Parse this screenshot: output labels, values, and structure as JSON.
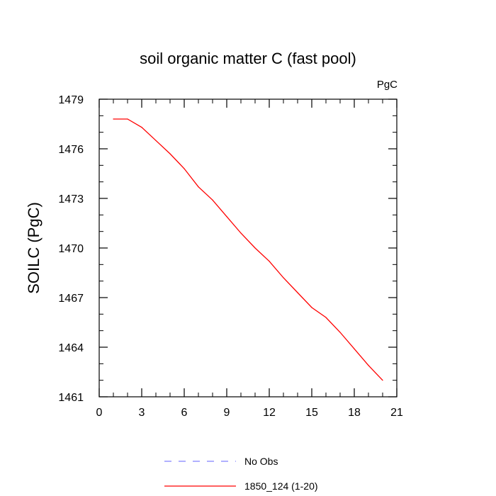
{
  "chart_data": {
    "type": "line",
    "title": "soil organic matter C (fast pool)",
    "units_label": "PgC",
    "xlabel": "",
    "ylabel": "SOILC  (PgC)",
    "xlim": [
      0,
      21
    ],
    "ylim": [
      1461,
      1479
    ],
    "xticks": [
      0,
      3,
      6,
      9,
      12,
      15,
      18,
      21
    ],
    "yticks": [
      1461,
      1464,
      1467,
      1470,
      1473,
      1476,
      1479
    ],
    "grid": false,
    "legend_position": "bottom",
    "series": [
      {
        "name": "No Obs",
        "color": "#8080ff",
        "dash": true,
        "x": [],
        "y": []
      },
      {
        "name": "1850_124 (1-20)",
        "color": "#ff0000",
        "dash": false,
        "x": [
          1,
          2,
          3,
          4,
          5,
          6,
          7,
          8,
          9,
          10,
          11,
          12,
          13,
          14,
          15,
          16,
          17,
          18,
          19,
          20
        ],
        "y": [
          1477.8,
          1477.8,
          1477.3,
          1476.5,
          1475.7,
          1474.8,
          1473.7,
          1472.9,
          1471.9,
          1470.9,
          1470.0,
          1469.2,
          1468.2,
          1467.3,
          1466.4,
          1465.8,
          1464.9,
          1463.9,
          1462.9,
          1462.0
        ]
      }
    ]
  }
}
